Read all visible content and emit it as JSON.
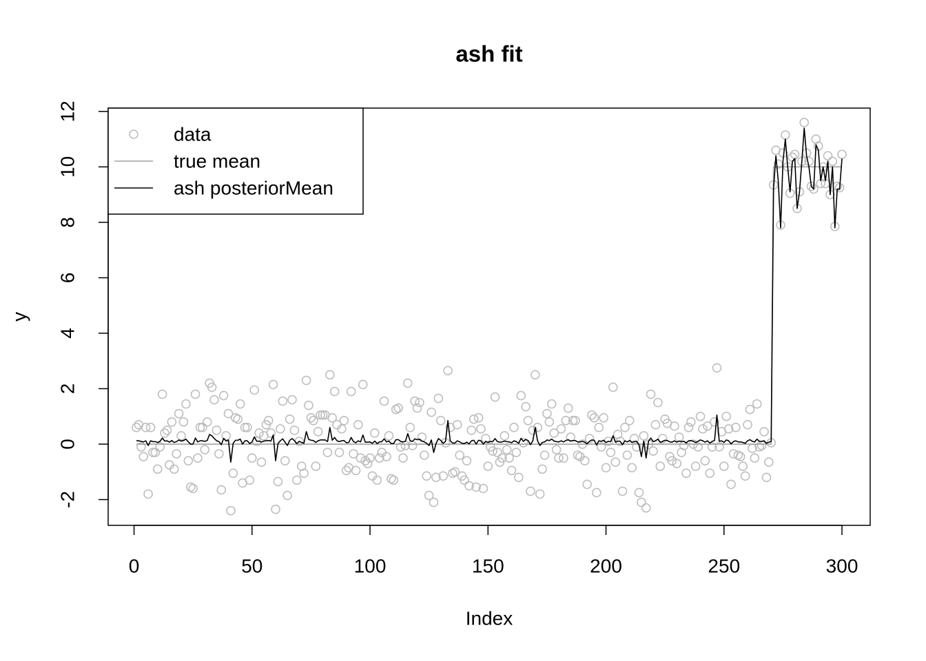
{
  "chart_data": {
    "type": "scatter",
    "title": "ash fit",
    "x_label": "Index",
    "y_label": "y",
    "x": [
      1,
      2,
      3,
      4,
      5,
      6,
      7,
      8,
      9,
      10,
      11,
      12,
      13,
      14,
      15,
      16,
      17,
      18,
      19,
      20,
      21,
      22,
      23,
      24,
      25,
      26,
      27,
      28,
      29,
      30,
      31,
      32,
      33,
      34,
      35,
      36,
      37,
      38,
      39,
      40,
      41,
      42,
      43,
      44,
      45,
      46,
      47,
      48,
      49,
      50,
      51,
      52,
      53,
      54,
      55,
      56,
      57,
      58,
      59,
      60,
      61,
      62,
      63,
      64,
      65,
      66,
      67,
      68,
      69,
      70,
      71,
      72,
      73,
      74,
      75,
      76,
      77,
      78,
      79,
      80,
      81,
      82,
      83,
      84,
      85,
      86,
      87,
      88,
      89,
      90,
      91,
      92,
      93,
      94,
      95,
      96,
      97,
      98,
      99,
      100,
      101,
      102,
      103,
      104,
      105,
      106,
      107,
      108,
      109,
      110,
      111,
      112,
      113,
      114,
      115,
      116,
      117,
      118,
      119,
      120,
      121,
      122,
      123,
      124,
      125,
      126,
      127,
      128,
      129,
      130,
      131,
      132,
      133,
      134,
      135,
      136,
      137,
      138,
      139,
      140,
      141,
      142,
      143,
      144,
      145,
      146,
      147,
      148,
      149,
      150,
      151,
      152,
      153,
      154,
      155,
      156,
      157,
      158,
      159,
      160,
      161,
      162,
      163,
      164,
      165,
      166,
      167,
      168,
      169,
      170,
      171,
      172,
      173,
      174,
      175,
      176,
      177,
      178,
      179,
      180,
      181,
      182,
      183,
      184,
      185,
      186,
      187,
      188,
      189,
      190,
      191,
      192,
      193,
      194,
      195,
      196,
      197,
      198,
      199,
      200,
      201,
      202,
      203,
      204,
      205,
      206,
      207,
      208,
      209,
      210,
      211,
      212,
      213,
      214,
      215,
      216,
      217,
      218,
      219,
      220,
      221,
      222,
      223,
      224,
      225,
      226,
      227,
      228,
      229,
      230,
      231,
      232,
      233,
      234,
      235,
      236,
      237,
      238,
      239,
      240,
      241,
      242,
      243,
      244,
      245,
      246,
      247,
      248,
      249,
      250,
      251,
      252,
      253,
      254,
      255,
      256,
      257,
      258,
      259,
      260,
      261,
      262,
      263,
      264,
      265,
      266,
      267,
      268,
      269,
      270,
      271,
      272,
      273,
      274,
      275,
      276,
      277,
      278,
      279,
      280,
      281,
      282,
      283,
      284,
      285,
      286,
      287,
      288,
      289,
      290,
      291,
      292,
      293,
      294,
      295,
      296,
      297,
      298,
      299,
      300
    ],
    "series": [
      {
        "name": "data",
        "type": "scatter",
        "color": "#bebebe",
        "values": [
          0.6,
          0.7,
          -0.1,
          -0.45,
          0.6,
          -1.8,
          0.6,
          -0.3,
          -0.3,
          -0.9,
          -0.1,
          1.8,
          0.4,
          0.5,
          -0.75,
          0.8,
          -0.9,
          -0.35,
          1.1,
          0.3,
          0.8,
          1.45,
          -0.6,
          -1.55,
          -1.6,
          1.8,
          -0.5,
          0.6,
          0.6,
          -0.2,
          0.8,
          2.2,
          2.05,
          1.6,
          0.5,
          -0.35,
          -1.65,
          1.75,
          0.3,
          1.1,
          -2.4,
          -1.05,
          0.95,
          0.9,
          1.45,
          -1.4,
          0.6,
          0.6,
          -1.3,
          -0.5,
          1.95,
          0.1,
          0.4,
          -0.65,
          0.3,
          0.7,
          0.85,
          0.4,
          2.15,
          -2.35,
          -1.35,
          0.55,
          1.55,
          -0.6,
          -1.85,
          0.9,
          1.6,
          0.5,
          -1.3,
          0.1,
          -0.8,
          -1.05,
          2.3,
          1.4,
          0.95,
          0.85,
          -0.8,
          0.45,
          1.05,
          1.05,
          1.05,
          -0.3,
          2.5,
          0.95,
          1.9,
          0.7,
          -0.3,
          0.55,
          0.85,
          -0.95,
          -0.85,
          1.9,
          -0.35,
          -0.95,
          0.7,
          -0.5,
          2.15,
          -0.6,
          -0.7,
          -0.5,
          -1.15,
          0.4,
          -1.3,
          -0.5,
          -0.3,
          1.55,
          -0.45,
          0.3,
          -1.25,
          -1.3,
          1.25,
          1.3,
          -0.1,
          -0.5,
          -0.05,
          2.2,
          0.6,
          -0.05,
          1.55,
          1.3,
          1.5,
          0.25,
          -0.4,
          -1.15,
          -1.85,
          1.15,
          -2.1,
          -1.2,
          1.65,
          0.85,
          -1.15,
          0.05,
          2.65,
          0.6,
          -1.05,
          -1.0,
          0.7,
          -0.4,
          -1.15,
          -1.3,
          -0.6,
          -1.5,
          0.5,
          0.9,
          -1.55,
          0.95,
          0.55,
          -1.6,
          0.2,
          -0.8,
          -0.1,
          -0.25,
          1.7,
          -0.3,
          -0.65,
          -0.5,
          0.3,
          -0.2,
          -0.5,
          -0.95,
          0.6,
          -0.3,
          -1.2,
          1.75,
          0.05,
          1.35,
          0.85,
          -1.7,
          0.5,
          2.5,
          0.6,
          -1.8,
          -0.9,
          -0.4,
          1.1,
          0.8,
          1.45,
          0.4,
          -0.2,
          -0.5,
          0.55,
          -0.5,
          0.85,
          1.3,
          0.25,
          0.85,
          0.85,
          -0.4,
          -0.45,
          0.0,
          -0.6,
          -1.45,
          0.2,
          1.05,
          0.95,
          -1.75,
          0.6,
          -0.1,
          0.95,
          -0.85,
          0.1,
          -0.3,
          2.05,
          -0.65,
          0.35,
          0.1,
          -1.7,
          0.6,
          -0.4,
          0.85,
          -0.85,
          0.2,
          -0.1,
          -1.75,
          -2.1,
          0.3,
          -2.3,
          0.0,
          1.8,
          -0.25,
          0.7,
          1.5,
          -0.8,
          0.2,
          0.9,
          0.75,
          -0.45,
          -0.6,
          0.65,
          -0.7,
          0.25,
          -0.3,
          -0.05,
          -1.05,
          0.6,
          0.8,
          0.0,
          -0.8,
          -0.1,
          1.0,
          0.55,
          -0.6,
          0.65,
          -1.05,
          -0.1,
          0.8,
          2.75,
          -0.1,
          0.45,
          -0.8,
          1.0,
          0.55,
          -1.45,
          -0.35,
          0.6,
          -0.4,
          -0.45,
          -0.8,
          -1.15,
          0.7,
          1.25,
          -0.15,
          -0.5,
          1.45,
          -0.1,
          -0.05,
          0.45,
          -1.2,
          -0.65,
          0.05,
          9.35,
          10.6,
          10.1,
          7.9,
          10.5,
          11.15,
          10.0,
          9.05,
          10.35,
          10.45,
          8.5,
          9.1,
          10.2,
          11.6,
          10.5,
          10.2,
          9.3,
          9.2,
          11.0,
          10.75,
          9.4,
          10.0,
          9.4,
          10.4,
          9.0,
          10.2,
          7.85,
          9.3,
          9.25,
          10.45
        ]
      },
      {
        "name": "true mean",
        "type": "line",
        "color": "#a0a0a0",
        "values": [
          0,
          0,
          0,
          0,
          0,
          0,
          0,
          0,
          0,
          0,
          0,
          0,
          0,
          0,
          0,
          0,
          0,
          0,
          0,
          0,
          0,
          0,
          0,
          0,
          0,
          0,
          0,
          0,
          0,
          0,
          0,
          0,
          0,
          0,
          0,
          0,
          0,
          0,
          0,
          0,
          0,
          0,
          0,
          0,
          0,
          0,
          0,
          0,
          0,
          0,
          0,
          0,
          0,
          0,
          0,
          0,
          0,
          0,
          0,
          0,
          0,
          0,
          0,
          0,
          0,
          0,
          0,
          0,
          0,
          0,
          0,
          0,
          0,
          0,
          0,
          0,
          0,
          0,
          0,
          0,
          0,
          0,
          0,
          0,
          0,
          0,
          0,
          0,
          0,
          0,
          0,
          0,
          0,
          0,
          0,
          0,
          0,
          0,
          0,
          0,
          0,
          0,
          0,
          0,
          0,
          0,
          0,
          0,
          0,
          0,
          0,
          0,
          0,
          0,
          0,
          0,
          0,
          0,
          0,
          0,
          0,
          0,
          0,
          0,
          0,
          0,
          0,
          0,
          0,
          0,
          0,
          0,
          0,
          0,
          0,
          0,
          0,
          0,
          0,
          0,
          0,
          0,
          0,
          0,
          0,
          0,
          0,
          0,
          0,
          0,
          0,
          0,
          0,
          0,
          0,
          0,
          0,
          0,
          0,
          0,
          0,
          0,
          0,
          0,
          0,
          0,
          0,
          0,
          0,
          0,
          0,
          0,
          0,
          0,
          0,
          0,
          0,
          0,
          0,
          0,
          0,
          0,
          0,
          0,
          0,
          0,
          0,
          0,
          0,
          0,
          0,
          0,
          0,
          0,
          0,
          0,
          0,
          0,
          0,
          0,
          0,
          0,
          0,
          0,
          0,
          0,
          0,
          0,
          0,
          0,
          0,
          0,
          0,
          0,
          0,
          0,
          0,
          0,
          0,
          0,
          0,
          0,
          0,
          0,
          0,
          0,
          0,
          0,
          0,
          0,
          0,
          0,
          0,
          0,
          0,
          0,
          0,
          0,
          0,
          0,
          0,
          0,
          0,
          0,
          0,
          0,
          0,
          0,
          0,
          0,
          0,
          0,
          0,
          0,
          0,
          0,
          0,
          0,
          0,
          0,
          0,
          0,
          0,
          0,
          0,
          0,
          0,
          0,
          0,
          0,
          10,
          10,
          10,
          10,
          10,
          10,
          10,
          10,
          10,
          10,
          10,
          10,
          10,
          10,
          10,
          10,
          10,
          10,
          10,
          10,
          10,
          10,
          10,
          10,
          10,
          10,
          10,
          10,
          10,
          10
        ]
      },
      {
        "name": "ash posteriorMean",
        "type": "line",
        "color": "#000000",
        "values": [
          0.12,
          0.12,
          0.1,
          0.08,
          0.12,
          -0.05,
          0.12,
          0.09,
          0.09,
          0.06,
          0.1,
          0.22,
          0.11,
          0.12,
          0.07,
          0.13,
          0.06,
          0.09,
          0.15,
          0.11,
          0.13,
          0.18,
          0.08,
          0.0,
          0.0,
          0.22,
          0.08,
          0.12,
          0.12,
          0.1,
          0.13,
          0.35,
          0.3,
          0.2,
          0.12,
          0.09,
          -0.02,
          0.21,
          0.11,
          0.15,
          -0.65,
          0.03,
          0.14,
          0.14,
          0.18,
          0.0,
          0.12,
          0.12,
          0.02,
          0.08,
          0.26,
          0.1,
          0.11,
          0.07,
          0.11,
          0.12,
          0.13,
          0.11,
          0.33,
          -0.6,
          0.02,
          0.12,
          0.19,
          0.07,
          -0.05,
          0.14,
          0.2,
          0.12,
          0.02,
          0.1,
          0.06,
          0.03,
          0.45,
          0.17,
          0.14,
          0.13,
          0.06,
          0.12,
          0.15,
          0.15,
          0.15,
          0.09,
          0.6,
          0.14,
          0.24,
          0.12,
          0.09,
          0.12,
          0.13,
          0.05,
          0.06,
          0.24,
          0.09,
          0.05,
          0.12,
          0.08,
          0.33,
          0.07,
          0.07,
          0.08,
          0.03,
          0.11,
          0.02,
          0.08,
          0.09,
          0.19,
          0.08,
          0.11,
          0.02,
          0.02,
          0.16,
          0.16,
          0.1,
          0.08,
          0.1,
          0.38,
          0.12,
          0.1,
          0.19,
          0.16,
          0.18,
          0.11,
          0.08,
          0.03,
          -0.05,
          0.15,
          -0.3,
          0.03,
          0.2,
          0.13,
          0.03,
          0.1,
          0.85,
          0.12,
          0.04,
          0.04,
          0.12,
          0.08,
          0.03,
          0.02,
          0.07,
          0.01,
          0.12,
          0.14,
          0.0,
          0.14,
          0.12,
          0.0,
          0.1,
          0.06,
          0.1,
          0.09,
          0.2,
          0.09,
          0.07,
          0.08,
          0.11,
          0.09,
          0.08,
          0.05,
          0.12,
          0.09,
          0.03,
          0.21,
          0.1,
          0.17,
          0.13,
          -0.02,
          0.12,
          0.6,
          0.12,
          -0.05,
          0.06,
          0.08,
          0.15,
          0.13,
          0.18,
          0.11,
          0.09,
          0.08,
          0.12,
          0.08,
          0.13,
          0.16,
          0.11,
          0.13,
          0.13,
          0.08,
          0.08,
          0.1,
          0.07,
          0.01,
          0.1,
          0.15,
          0.14,
          -0.03,
          0.12,
          0.1,
          0.14,
          0.06,
          0.1,
          0.09,
          0.3,
          0.07,
          0.11,
          0.1,
          -0.02,
          0.12,
          0.08,
          0.13,
          0.06,
          0.1,
          0.1,
          -0.03,
          -0.45,
          0.11,
          -0.5,
          0.1,
          0.22,
          0.09,
          0.12,
          0.18,
          0.06,
          0.1,
          0.14,
          0.13,
          0.08,
          0.07,
          0.12,
          0.07,
          0.11,
          0.09,
          0.1,
          0.04,
          0.12,
          0.13,
          0.1,
          0.06,
          0.1,
          0.15,
          0.12,
          0.07,
          0.12,
          0.04,
          0.1,
          0.13,
          1.05,
          0.1,
          0.12,
          0.06,
          0.15,
          0.12,
          0.01,
          0.09,
          0.12,
          0.08,
          0.08,
          0.06,
          0.03,
          0.12,
          0.16,
          0.1,
          0.08,
          0.18,
          0.1,
          0.1,
          0.12,
          0.03,
          0.07,
          0.1,
          9.2,
          10.4,
          9.5,
          7.8,
          10.2,
          11.0,
          10.0,
          9.1,
          10.2,
          10.3,
          8.5,
          9.1,
          10.2,
          11.4,
          10.4,
          10.0,
          9.3,
          9.2,
          10.8,
          10.6,
          9.5,
          10.0,
          9.5,
          10.2,
          9.0,
          10.0,
          7.8,
          9.2,
          9.2,
          10.3
        ]
      }
    ],
    "xlim": [
      -10.96,
      311.96
    ],
    "ylim": [
      -2.93,
      12.12
    ],
    "xticks": [
      0,
      50,
      100,
      150,
      200,
      250,
      300
    ],
    "yticks": [
      -2,
      0,
      2,
      4,
      6,
      8,
      10,
      12
    ],
    "legend": "topleft"
  }
}
